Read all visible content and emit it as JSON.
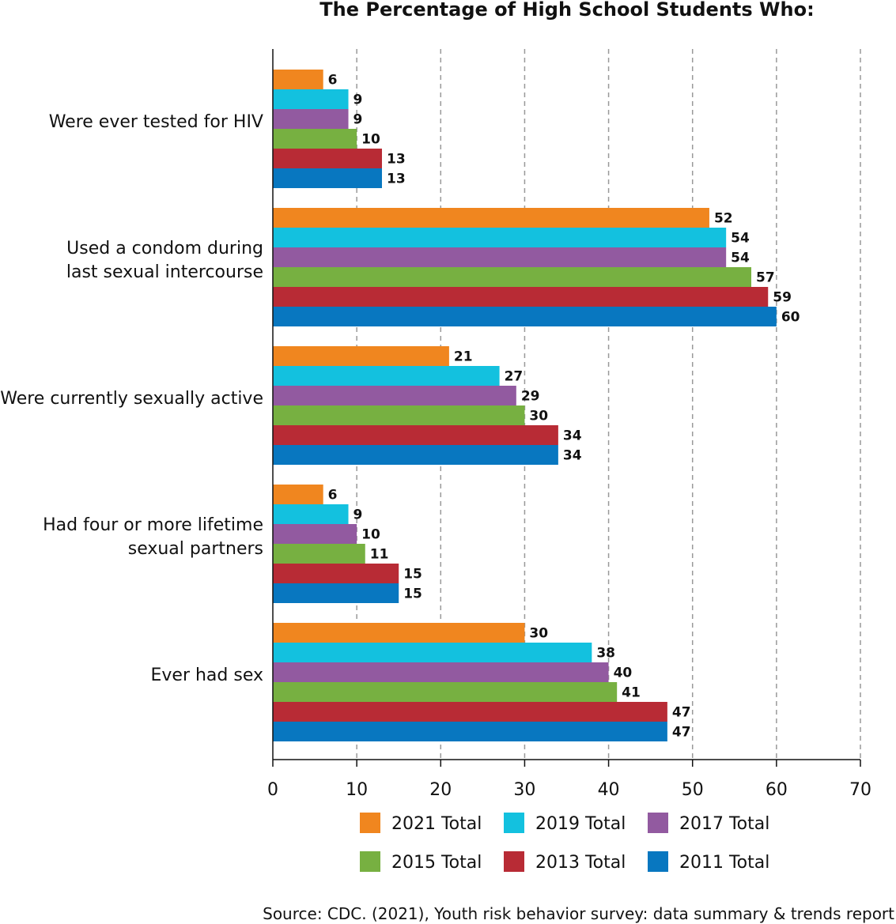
{
  "chart_data": {
    "type": "bar",
    "orientation": "horizontal",
    "title": "The Percentage of High School Students Who:",
    "categories": [
      [
        "Were ever tested for HIV"
      ],
      [
        "Used a condom during",
        "last sexual intercourse"
      ],
      [
        "Were currently sexually active"
      ],
      [
        "Had four or more lifetime",
        "sexual partners"
      ],
      [
        "Ever had sex"
      ]
    ],
    "series": [
      {
        "name": "2021 Total",
        "color": "#F0861F",
        "values": [
          6,
          52,
          21,
          6,
          30
        ]
      },
      {
        "name": "2019 Total",
        "color": "#13C1DF",
        "values": [
          9,
          54,
          27,
          9,
          38
        ]
      },
      {
        "name": "2017 Total",
        "color": "#925AA0",
        "values": [
          9,
          54,
          29,
          10,
          40
        ]
      },
      {
        "name": "2015 Total",
        "color": "#77B041",
        "values": [
          10,
          57,
          30,
          11,
          41
        ]
      },
      {
        "name": "2013 Total",
        "color": "#B82B35",
        "values": [
          13,
          59,
          34,
          15,
          47
        ]
      },
      {
        "name": "2011 Total",
        "color": "#0877C0",
        "values": [
          13,
          60,
          34,
          15,
          47
        ]
      }
    ],
    "xlim": [
      0,
      70
    ],
    "xticks": [
      0,
      10,
      20,
      30,
      40,
      50,
      60,
      70
    ],
    "grid": "vertical dashed",
    "legend_placement": "bottom",
    "data_labels": true,
    "xlabel": "",
    "ylabel": ""
  },
  "source": "Source: CDC. (2021), Youth risk behavior survey: data summary & trends report"
}
